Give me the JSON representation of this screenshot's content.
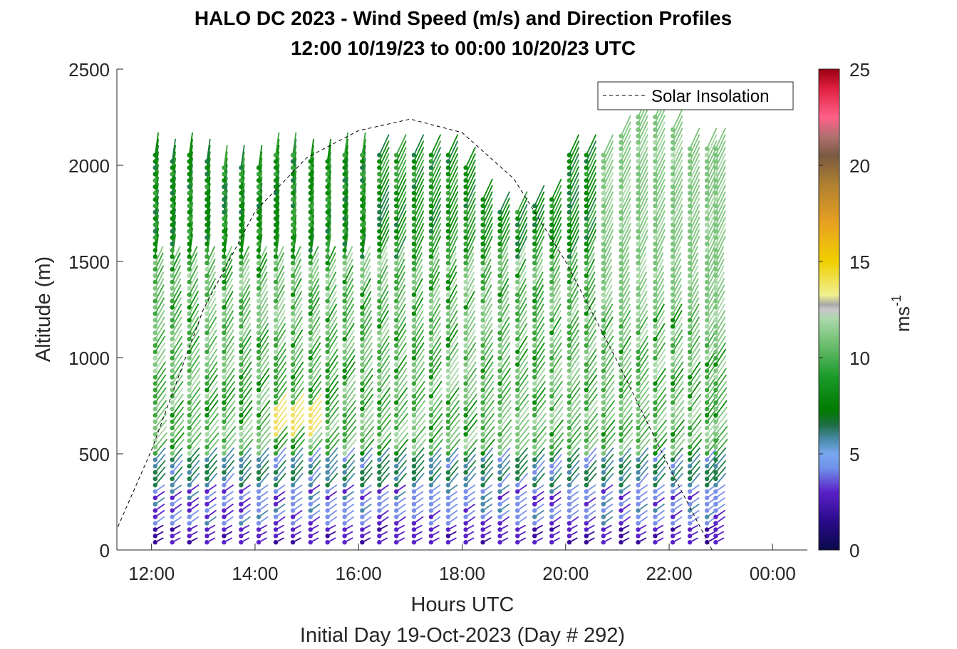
{
  "chart_data": {
    "type": "scatter",
    "title": "HALO DC 2023 - Wind Speed (m/s) and Direction Profiles",
    "subtitle": "12:00 10/19/23 to 00:00 10/20/23  UTC",
    "xlabel": "Hours UTC",
    "x_note": "Initial Day 19-Oct-2023 (Day # 292)",
    "ylabel": "Altitude (m)",
    "xlim": [
      "11:20",
      "00:40"
    ],
    "ylim": [
      0,
      2500
    ],
    "x_ticks": [
      "12:00",
      "14:00",
      "16:00",
      "18:00",
      "20:00",
      "22:00",
      "00:00"
    ],
    "x_tick_hours": [
      12,
      14,
      16,
      18,
      20,
      22,
      24
    ],
    "y_ticks": [
      "0",
      "500",
      "1000",
      "1500",
      "2000",
      "2500"
    ],
    "y_tick_values": [
      0,
      500,
      1000,
      1500,
      2000,
      2500
    ],
    "legend": {
      "entries": [
        "Solar Insolation"
      ],
      "placement": "top-right"
    },
    "colorbar": {
      "label": "ms",
      "label_superscript": "-1",
      "ticks": [
        "0",
        "5",
        "10",
        "15",
        "20",
        "25"
      ],
      "tick_values": [
        0,
        5,
        10,
        15,
        20,
        25
      ],
      "range": [
        0,
        25
      ]
    },
    "solar_insolation": {
      "style": "black dashed",
      "points": [
        [
          11.3,
          90
        ],
        [
          12.0,
          520
        ],
        [
          13.0,
          1250
        ],
        [
          14.0,
          1760
        ],
        [
          15.0,
          2040
        ],
        [
          16.0,
          2180
        ],
        [
          17.0,
          2240
        ],
        [
          18.0,
          2170
        ],
        [
          19.0,
          1930
        ],
        [
          20.0,
          1500
        ],
        [
          21.0,
          980
        ],
        [
          22.0,
          430
        ],
        [
          22.83,
          0
        ],
        [
          24.7,
          0
        ]
      ]
    },
    "wind_profiles": {
      "times_hours": [
        12.07,
        12.4,
        12.73,
        13.07,
        13.4,
        13.73,
        14.07,
        14.4,
        14.73,
        15.07,
        15.4,
        15.73,
        16.07,
        16.4,
        16.73,
        17.07,
        17.4,
        17.73,
        18.07,
        18.4,
        18.73,
        19.07,
        19.4,
        19.73,
        20.07,
        20.4,
        20.73,
        21.07,
        21.4,
        21.73,
        22.07,
        22.4,
        22.73,
        22.9
      ],
      "top_altitudes_m": [
        2080,
        2040,
        2080,
        2040,
        2000,
        2000,
        2000,
        2080,
        2080,
        2040,
        2040,
        2080,
        2080,
        2080,
        2080,
        2080,
        2080,
        2080,
        2000,
        1850,
        1780,
        1780,
        1820,
        1850,
        2080,
        2080,
        2080,
        2180,
        2280,
        2280,
        2200,
        2100,
        2100,
        2100
      ],
      "level_spacing_m": 33,
      "note": "approximate: speeds mostly 6-11 m/s aloft (greens), 1-5 m/s near surface (purples/blues), locally ~13 m/s near 600-700 m around 14:30-15:00; directions mostly from the south-west"
    }
  }
}
